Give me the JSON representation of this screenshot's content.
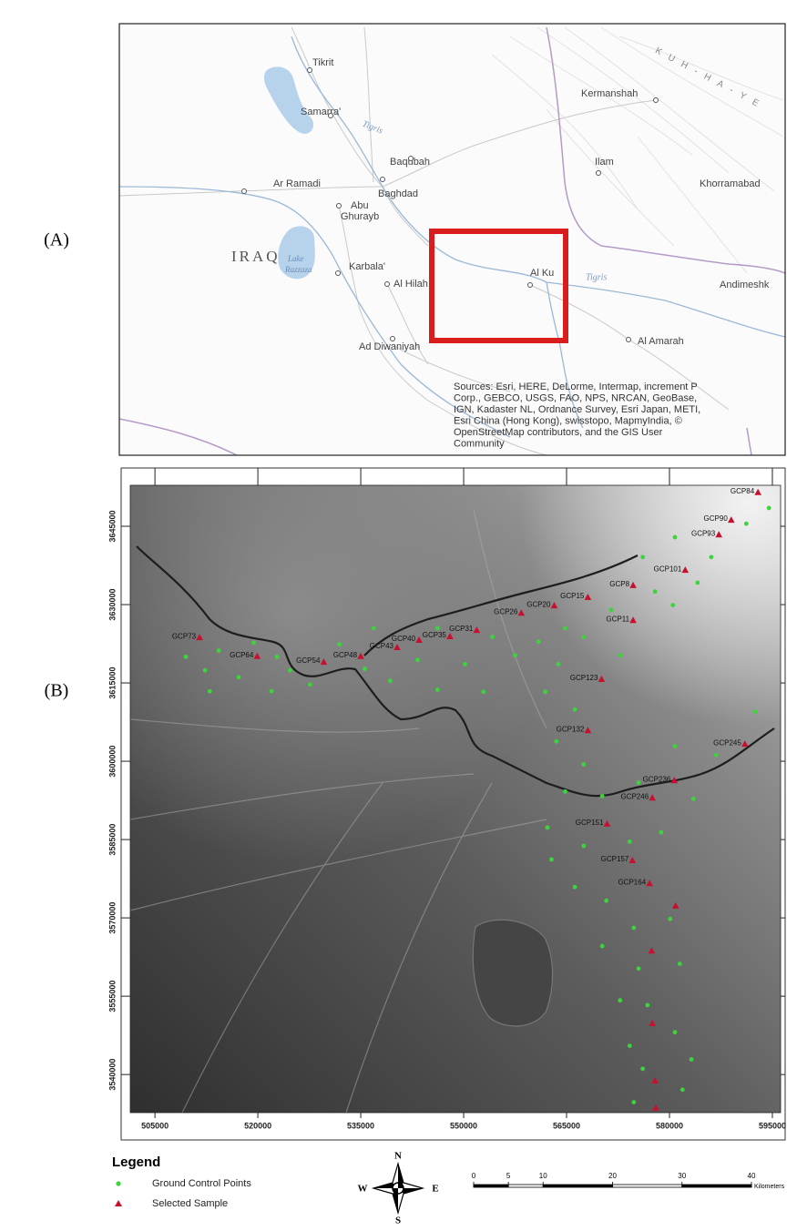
{
  "panel_labels": [
    "(A)",
    "(B)"
  ],
  "overview_map": {
    "places": [
      "Tikrit",
      "Samarra'",
      "Baqubah",
      "Kermanshah",
      "Ilam",
      "Khorramabad",
      "Ar Ramadi",
      "Baghdad",
      "Abu",
      "Ghurayb",
      "Karbala'",
      "Al Hilah",
      "Al Ku",
      "Andimeshk",
      "Ad Diwaniyah",
      "Al Amarah"
    ],
    "rivers": [
      "Tigris",
      "Tigris"
    ],
    "country": "IRAQ",
    "lake": [
      "Lake",
      "Razzaza"
    ],
    "mountains": "KUH-HA-YE",
    "sources": [
      "Sources: Esri, HERE, DeLorme, Intermap, increment P",
      "Corp., GEBCO, USGS, FAO, NPS, NRCAN, GeoBase,",
      "IGN, Kadaster NL, Ordnance Survey, Esri Japan, METI,",
      "Esri China (Hong Kong), swisstopo, MapmyIndia, ©",
      "OpenStreetMap contributors, and the GIS User",
      "Community"
    ]
  },
  "chart_data": {
    "type": "scatter",
    "xlim": [
      501400,
      596200
    ],
    "ylim": [
      3532700,
      3652850
    ],
    "xticks": [
      505000,
      520000,
      535000,
      550000,
      565000,
      580000,
      595000
    ],
    "yticks": [
      3540000,
      3555000,
      3570000,
      3585000,
      3600000,
      3615000,
      3630000,
      3645000
    ],
    "legend_title": "Legend",
    "series": [
      {
        "name": "Ground Control Points",
        "color": "#3cd43c",
        "marker": "circle",
        "x": [
          509500,
          512300,
          514300,
          517200,
          519400,
          522000,
          524700,
          527600,
          531900,
          535600,
          539300,
          543300,
          546200,
          550200,
          554200,
          557500,
          560900,
          564800,
          563800,
          567500,
          571500,
          572800,
          577900,
          580500,
          584100,
          586100,
          591200,
          594500,
          580800,
          576100,
          561900,
          566200,
          563500,
          567500,
          564800,
          570200,
          575500,
          580800,
          586800,
          592500,
          583500,
          562200,
          567500,
          574200,
          578800,
          562800,
          566200,
          570800,
          574800,
          580100,
          570200,
          575500,
          581500,
          572800,
          576800,
          580800,
          574200,
          576100,
          581900,
          574800,
          583200,
          552900,
          546200,
          536900,
          522800,
          513000
        ],
        "y": [
          3620000,
          3617400,
          3621200,
          3616100,
          3622700,
          3613400,
          3617400,
          3614700,
          3622400,
          3617700,
          3615400,
          3619400,
          3613700,
          3618600,
          3623800,
          3620300,
          3622900,
          3625500,
          3618600,
          3623800,
          3629000,
          3620300,
          3632500,
          3629900,
          3634200,
          3639100,
          3645500,
          3648500,
          3642900,
          3639100,
          3613300,
          3609900,
          3603800,
          3599400,
          3594200,
          3593300,
          3595900,
          3602900,
          3601200,
          3609500,
          3592800,
          3587300,
          3583800,
          3584600,
          3586400,
          3581200,
          3575900,
          3573300,
          3568100,
          3569800,
          3564600,
          3560300,
          3561200,
          3554200,
          3553300,
          3548100,
          3545500,
          3541100,
          3537100,
          3534700,
          3542900,
          3613300,
          3625500,
          3625500,
          3620000,
          3613400
        ]
      },
      {
        "name": "Selected Sample",
        "color": "#c8102e",
        "marker": "triangle",
        "x": [
          592900,
          589000,
          587200,
          582300,
          574700,
          568100,
          574700,
          563200,
          558400,
          551900,
          548000,
          543500,
          540300,
          535000,
          529600,
          519900,
          511500,
          570100,
          568100,
          591000,
          580700,
          577500,
          570900,
          574600,
          577100,
          580900,
          577400,
          577500,
          577900,
          578000
        ],
        "y": [
          3651500,
          3646200,
          3643400,
          3636600,
          3633700,
          3631400,
          3627000,
          3629800,
          3628400,
          3625100,
          3623900,
          3623200,
          3621800,
          3620100,
          3619000,
          3620100,
          3623700,
          3615700,
          3605900,
          3603300,
          3596300,
          3593000,
          3588000,
          3581000,
          3576600,
          3572300,
          3563700,
          3549800,
          3538800,
          3533600
        ],
        "labels": [
          "GCP84",
          "GCP90",
          "GCP93",
          "GCP101",
          "GCP8",
          "GCP15",
          "GCP11",
          "GCP20",
          "GCP26",
          "GCP31",
          "GCP35",
          "GCP40",
          "GCP43",
          "GCP48",
          "GCP54",
          "GCP64",
          "GCP73",
          "GCP123",
          "GCP132",
          "GCP245",
          "GCP236",
          "GCP246",
          "GCP151",
          "GCP157",
          "GCP164",
          null,
          null,
          null,
          null,
          null
        ]
      }
    ]
  },
  "compass": [
    "N",
    "E",
    "S",
    "W"
  ],
  "scale_bar": {
    "ticks": [
      0,
      5,
      10,
      20,
      30,
      40
    ],
    "unit": "Kilometers"
  }
}
